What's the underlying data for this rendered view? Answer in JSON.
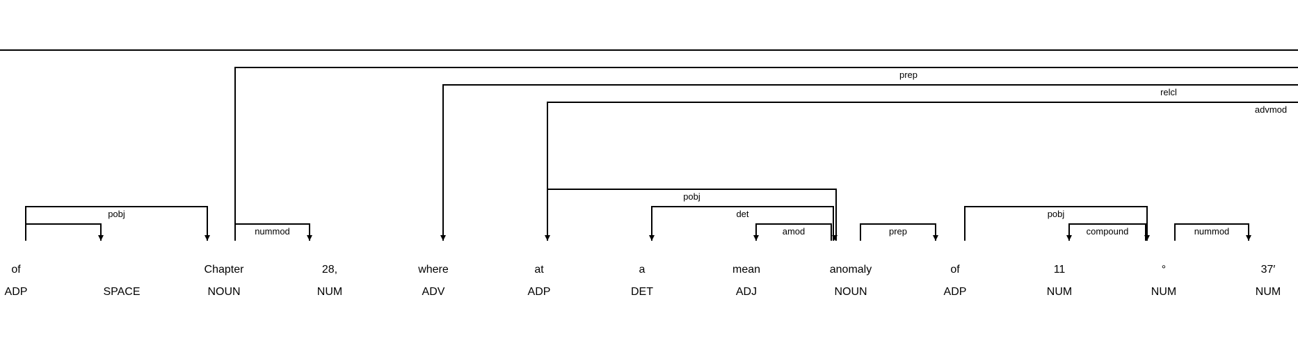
{
  "tokens": [
    {
      "text": "of",
      "pos": "ADP"
    },
    {
      "text": "",
      "pos": "SPACE"
    },
    {
      "text": "Chapter",
      "pos": "NOUN"
    },
    {
      "text": "28,",
      "pos": "NUM"
    },
    {
      "text": "where",
      "pos": "ADV"
    },
    {
      "text": "at",
      "pos": "ADP"
    },
    {
      "text": "a",
      "pos": "DET"
    },
    {
      "text": "mean",
      "pos": "ADJ"
    },
    {
      "text": "anomaly",
      "pos": "NOUN"
    },
    {
      "text": "of",
      "pos": "ADP"
    },
    {
      "text": "11",
      "pos": "NUM"
    },
    {
      "text": "°",
      "pos": "NUM"
    },
    {
      "text": "37′",
      "pos": "NUM"
    }
  ],
  "arcs": [
    {
      "label": "",
      "head": -1,
      "dep": 13
    },
    {
      "label": "prep",
      "head": 2,
      "dep": 13
    },
    {
      "label": "relcl",
      "head": 4,
      "dep": 13
    },
    {
      "label": "advmod",
      "head": 5,
      "dep": 13
    },
    {
      "label": "pobj",
      "head": 5,
      "dep": 8
    },
    {
      "label": "det",
      "head": 6,
      "dep": 8
    },
    {
      "label": "amod",
      "head": 7,
      "dep": 8
    },
    {
      "label": "pobj",
      "head": 0,
      "dep": 2
    },
    {
      "label": "",
      "head": 0,
      "dep": 1
    },
    {
      "label": "nummod",
      "head": 2,
      "dep": 3
    },
    {
      "label": "prep",
      "head": 9,
      "dep": 8
    },
    {
      "label": "pobj",
      "head": 9,
      "dep": 11
    },
    {
      "label": "compound",
      "head": 10,
      "dep": 11
    },
    {
      "label": "nummod",
      "head": 12,
      "dep": 11
    }
  ]
}
